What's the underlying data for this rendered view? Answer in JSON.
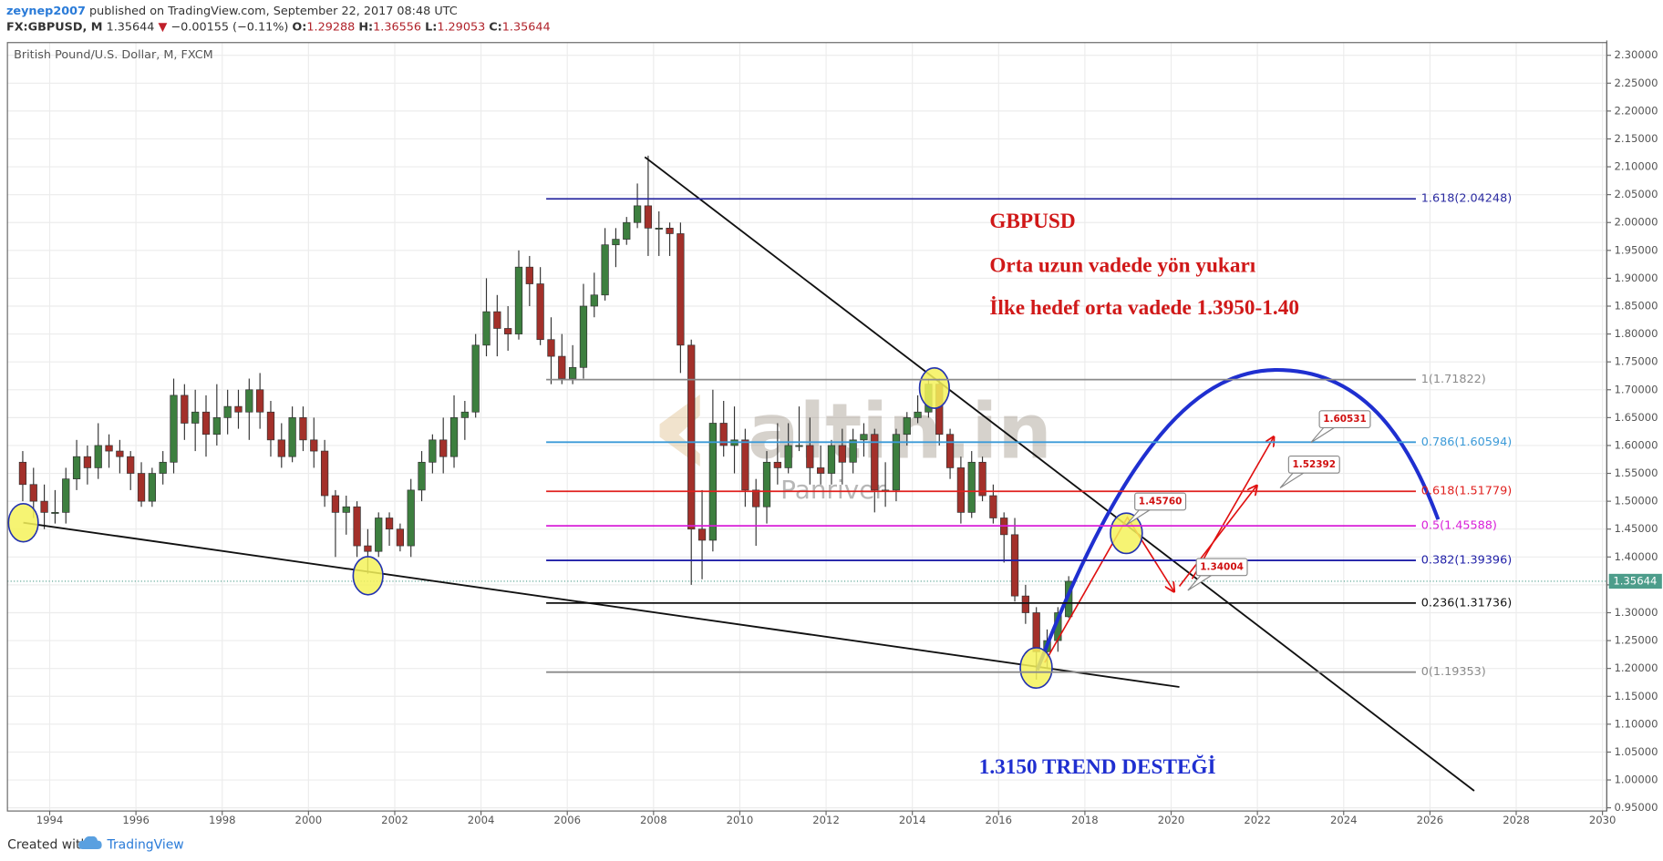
{
  "header": {
    "user": "zeynep2007",
    "published": "published on TradingView.com, September 22, 2017 08:48 UTC",
    "symbol": "FX:GBPUSD, M",
    "price": "1.35644",
    "change_arrow": "▼",
    "change": "−0.00155 (−0.11%)",
    "ohlc": [
      {
        "key": "O:",
        "value": "1.29288"
      },
      {
        "key": "H:",
        "value": "1.36556"
      },
      {
        "key": "L:",
        "value": "1.29053"
      },
      {
        "key": "C:",
        "value": "1.35644"
      }
    ]
  },
  "footer": {
    "created": "Created with",
    "brand": "TradingView"
  },
  "watermark": {
    "logo": "altin.in",
    "sub": "Panriver"
  },
  "chart_data": {
    "type": "candlestick",
    "title": "British Pound/U.S. Dollar, M, FXCM",
    "up_color": "#3d7f3f",
    "down_color": "#a3302a",
    "grid": true,
    "xlim": [
      1993.02,
      2030.1
    ],
    "xticks": [
      1994,
      1996,
      1998,
      2000,
      2002,
      2004,
      2006,
      2008,
      2010,
      2012,
      2014,
      2016,
      2018,
      2020,
      2022,
      2024,
      2026,
      2028,
      2030
    ],
    "ylim": [
      0.9443,
      2.3228
    ],
    "yticks": [
      {
        "value": 0.95,
        "label": "0.95000"
      },
      {
        "value": 1.0,
        "label": "1.00000"
      },
      {
        "value": 1.05,
        "label": "1.05000"
      },
      {
        "value": 1.1,
        "label": "1.10000"
      },
      {
        "value": 1.15,
        "label": "1.15000"
      },
      {
        "value": 1.2,
        "label": "1.20000"
      },
      {
        "value": 1.25,
        "label": "1.25000"
      },
      {
        "value": 1.3,
        "label": "1.30000"
      },
      {
        "value": 1.35,
        "label": "1.35000"
      },
      {
        "value": 1.4,
        "label": "1.40000"
      },
      {
        "value": 1.45,
        "label": "1.45000"
      },
      {
        "value": 1.5,
        "label": "1.50000"
      },
      {
        "value": 1.55,
        "label": "1.55000"
      },
      {
        "value": 1.6,
        "label": "1.60000"
      },
      {
        "value": 1.65,
        "label": "1.65000"
      },
      {
        "value": 1.7,
        "label": "1.70000"
      },
      {
        "value": 1.75,
        "label": "1.75000"
      },
      {
        "value": 1.8,
        "label": "1.80000"
      },
      {
        "value": 1.85,
        "label": "1.85000"
      },
      {
        "value": 1.9,
        "label": "1.90000"
      },
      {
        "value": 1.95,
        "label": "1.95000"
      },
      {
        "value": 2.0,
        "label": "2.00000"
      },
      {
        "value": 2.05,
        "label": "2.05000"
      },
      {
        "value": 2.1,
        "label": "2.10000"
      },
      {
        "value": 2.15,
        "label": "2.15000"
      },
      {
        "value": 2.2,
        "label": "2.20000"
      },
      {
        "value": 2.25,
        "label": "2.25000"
      },
      {
        "value": 2.3,
        "label": "2.30000"
      }
    ],
    "x": [
      1993.375,
      1993.625,
      1993.875,
      1994.125,
      1994.375,
      1994.625,
      1994.875,
      1995.125,
      1995.375,
      1995.625,
      1995.875,
      1996.125,
      1996.375,
      1996.625,
      1996.875,
      1997.125,
      1997.375,
      1997.625,
      1997.875,
      1998.125,
      1998.375,
      1998.625,
      1998.875,
      1999.125,
      1999.375,
      1999.625,
      1999.875,
      2000.125,
      2000.375,
      2000.625,
      2000.875,
      2001.125,
      2001.375,
      2001.625,
      2001.875,
      2002.125,
      2002.375,
      2002.625,
      2002.875,
      2003.125,
      2003.375,
      2003.625,
      2003.875,
      2004.125,
      2004.375,
      2004.625,
      2004.875,
      2005.125,
      2005.375,
      2005.625,
      2005.875,
      2006.125,
      2006.375,
      2006.625,
      2006.875,
      2007.125,
      2007.375,
      2007.625,
      2007.875,
      2008.125,
      2008.375,
      2008.625,
      2008.875,
      2009.125,
      2009.375,
      2009.625,
      2009.875,
      2010.125,
      2010.375,
      2010.625,
      2010.875,
      2011.125,
      2011.375,
      2011.625,
      2011.875,
      2012.125,
      2012.375,
      2012.625,
      2012.875,
      2013.125,
      2013.375,
      2013.625,
      2013.875,
      2014.125,
      2014.375,
      2014.625,
      2014.875,
      2015.125,
      2015.375,
      2015.625,
      2015.875,
      2016.125,
      2016.375,
      2016.625,
      2016.875,
      2017.125,
      2017.375,
      2017.625
    ],
    "open": [
      1.57,
      1.53,
      1.5,
      1.48,
      1.48,
      1.54,
      1.58,
      1.56,
      1.6,
      1.59,
      1.58,
      1.55,
      1.5,
      1.55,
      1.57,
      1.69,
      1.64,
      1.66,
      1.62,
      1.65,
      1.67,
      1.66,
      1.7,
      1.66,
      1.61,
      1.58,
      1.65,
      1.61,
      1.59,
      1.51,
      1.48,
      1.49,
      1.42,
      1.41,
      1.47,
      1.45,
      1.42,
      1.52,
      1.57,
      1.61,
      1.58,
      1.65,
      1.66,
      1.78,
      1.84,
      1.81,
      1.8,
      1.92,
      1.89,
      1.79,
      1.76,
      1.72,
      1.74,
      1.85,
      1.87,
      1.96,
      1.97,
      2.0,
      2.03,
      1.99,
      1.99,
      1.98,
      1.78,
      1.45,
      1.43,
      1.64,
      1.6,
      1.61,
      1.52,
      1.49,
      1.57,
      1.56,
      1.6,
      1.6,
      1.56,
      1.55,
      1.6,
      1.57,
      1.61,
      1.62,
      1.52,
      1.52,
      1.62,
      1.65,
      1.66,
      1.71,
      1.62,
      1.56,
      1.48,
      1.57,
      1.51,
      1.47,
      1.44,
      1.33,
      1.3,
      1.23,
      1.25,
      1.29288
    ],
    "high": [
      1.59,
      1.56,
      1.53,
      1.52,
      1.56,
      1.61,
      1.6,
      1.64,
      1.62,
      1.61,
      1.59,
      1.57,
      1.56,
      1.59,
      1.72,
      1.71,
      1.7,
      1.69,
      1.71,
      1.7,
      1.7,
      1.72,
      1.73,
      1.68,
      1.64,
      1.67,
      1.67,
      1.65,
      1.61,
      1.52,
      1.51,
      1.5,
      1.45,
      1.48,
      1.48,
      1.46,
      1.54,
      1.59,
      1.62,
      1.65,
      1.69,
      1.68,
      1.8,
      1.9,
      1.87,
      1.85,
      1.95,
      1.94,
      1.92,
      1.83,
      1.8,
      1.78,
      1.89,
      1.91,
      1.99,
      1.99,
      2.01,
      2.07,
      2.12,
      2.02,
      2.0,
      2.0,
      1.79,
      1.52,
      1.7,
      1.68,
      1.67,
      1.63,
      1.54,
      1.59,
      1.64,
      1.64,
      1.67,
      1.65,
      1.6,
      1.61,
      1.63,
      1.63,
      1.64,
      1.63,
      1.57,
      1.63,
      1.66,
      1.69,
      1.72,
      1.72,
      1.63,
      1.58,
      1.59,
      1.58,
      1.53,
      1.48,
      1.47,
      1.35,
      1.31,
      1.27,
      1.31,
      1.36556
    ],
    "low": [
      1.5,
      1.47,
      1.45,
      1.46,
      1.46,
      1.52,
      1.53,
      1.54,
      1.56,
      1.55,
      1.52,
      1.49,
      1.49,
      1.53,
      1.55,
      1.61,
      1.59,
      1.58,
      1.6,
      1.62,
      1.63,
      1.61,
      1.63,
      1.58,
      1.56,
      1.57,
      1.59,
      1.56,
      1.49,
      1.4,
      1.44,
      1.4,
      1.37,
      1.4,
      1.42,
      1.41,
      1.4,
      1.5,
      1.55,
      1.55,
      1.56,
      1.61,
      1.65,
      1.76,
      1.76,
      1.77,
      1.79,
      1.85,
      1.78,
      1.71,
      1.71,
      1.71,
      1.72,
      1.83,
      1.86,
      1.92,
      1.96,
      1.99,
      1.94,
      1.94,
      1.94,
      1.73,
      1.35,
      1.36,
      1.41,
      1.58,
      1.55,
      1.49,
      1.42,
      1.46,
      1.53,
      1.55,
      1.59,
      1.53,
      1.53,
      1.53,
      1.53,
      1.55,
      1.58,
      1.48,
      1.49,
      1.5,
      1.6,
      1.64,
      1.65,
      1.6,
      1.54,
      1.46,
      1.47,
      1.5,
      1.46,
      1.39,
      1.32,
      1.28,
      1.18,
      1.2,
      1.23,
      1.29053
    ],
    "close": [
      1.53,
      1.5,
      1.48,
      1.48,
      1.54,
      1.58,
      1.56,
      1.6,
      1.59,
      1.58,
      1.55,
      1.5,
      1.55,
      1.57,
      1.69,
      1.64,
      1.66,
      1.62,
      1.65,
      1.67,
      1.66,
      1.7,
      1.66,
      1.61,
      1.58,
      1.65,
      1.61,
      1.59,
      1.51,
      1.48,
      1.49,
      1.42,
      1.41,
      1.47,
      1.45,
      1.42,
      1.52,
      1.57,
      1.61,
      1.58,
      1.65,
      1.66,
      1.78,
      1.84,
      1.81,
      1.8,
      1.92,
      1.89,
      1.79,
      1.76,
      1.72,
      1.74,
      1.85,
      1.87,
      1.96,
      1.97,
      2.0,
      2.03,
      1.99,
      1.99,
      1.98,
      1.78,
      1.45,
      1.43,
      1.64,
      1.6,
      1.61,
      1.52,
      1.49,
      1.57,
      1.56,
      1.6,
      1.6,
      1.56,
      1.55,
      1.6,
      1.57,
      1.61,
      1.62,
      1.52,
      1.52,
      1.62,
      1.65,
      1.66,
      1.71,
      1.62,
      1.56,
      1.48,
      1.57,
      1.51,
      1.47,
      1.44,
      1.33,
      1.3,
      1.23,
      1.25,
      1.3,
      1.35644
    ],
    "last_price": {
      "value": 1.35644,
      "label": "1.35644",
      "color": "#4d9d8b"
    },
    "fib_levels": [
      {
        "label": "1.618(2.04248)",
        "value": 2.04248,
        "color": "#2a2aa0"
      },
      {
        "label": "1(1.71822)",
        "value": 1.71822,
        "color": "#8a8a8a"
      },
      {
        "label": "0.786(1.60594)",
        "value": 1.60594,
        "color": "#3b9ad8"
      },
      {
        "label": "0.618(1.51779)",
        "value": 1.51779,
        "color": "#e0201e"
      },
      {
        "label": "0.5(1.45588)",
        "value": 1.45588,
        "color": "#d81ed8"
      },
      {
        "label": "0.382(1.39396)",
        "value": 1.39396,
        "color": "#2020a8"
      },
      {
        "label": "0.236(1.31736)",
        "value": 1.31736,
        "color": "#111111"
      },
      {
        "label": "0(1.19353)",
        "value": 1.19353,
        "color": "#8a8a8a"
      }
    ],
    "callouts": [
      {
        "value": 1.4576,
        "label": "1.45760"
      },
      {
        "value": 1.34004,
        "label": "1.34004"
      },
      {
        "value": 1.52392,
        "label": "1.52392"
      },
      {
        "value": 1.60531,
        "label": "1.60531"
      }
    ],
    "annotations": [
      "GBPUSD",
      "Orta uzun vadede yön yukarı",
      "İlke hedef orta vadede 1.3950-1.40"
    ],
    "support_note": "1.3150 TREND DESTEĞİ"
  }
}
